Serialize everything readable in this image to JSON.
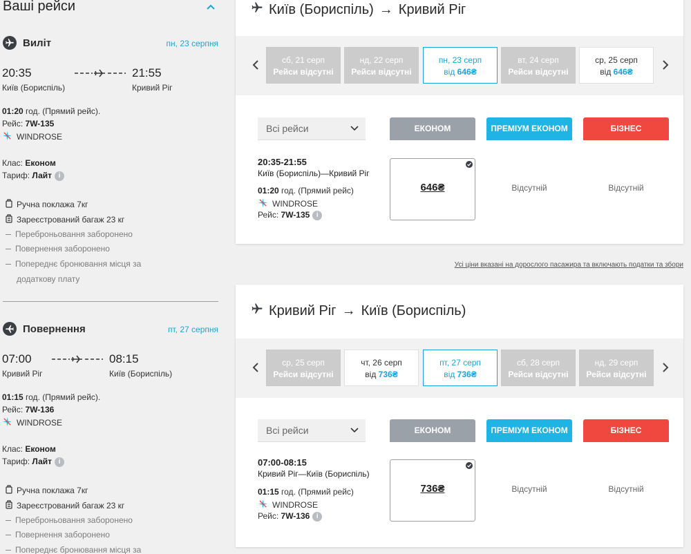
{
  "sidebar": {
    "title": "Ваші рейси",
    "outbound": {
      "label": "Виліт",
      "date": "пн, 23 серпня",
      "dep_time": "20:35",
      "arr_time": "21:55",
      "dep_city": "Київ (Бориспіль)",
      "arr_city": "Кривий Ріг",
      "duration": "01:20",
      "duration_suffix": " год. (Прямий рейс).",
      "flight_prefix": "Рейс: ",
      "flight_no": "7W-135",
      "airline": "WINDROSE",
      "class_prefix": "Клас: ",
      "class_value": "Економ",
      "tariff_prefix": "Тариф: ",
      "tariff_value": "Лайт",
      "luggage": [
        "Ручна поклажа 7кг",
        "Зареєстрований багаж 23 кг"
      ],
      "restrictions": [
        "Переброньовання заборонено",
        "Повернення заборонено",
        "Попереднє бронювання місця за",
        "додаткову плату"
      ]
    },
    "return": {
      "label": "Повернення",
      "date": "пт, 27 серпня",
      "dep_time": "07:00",
      "arr_time": "08:15",
      "dep_city": "Кривий Ріг",
      "arr_city": "Київ (Бориспіль)",
      "duration": "01:15",
      "duration_suffix": " год. (Прямий рейс).",
      "flight_prefix": "Рейс: ",
      "flight_no": "7W-136",
      "airline": "WINDROSE",
      "class_prefix": "Клас: ",
      "class_value": "Економ",
      "tariff_prefix": "Тариф: ",
      "tariff_value": "Лайт",
      "luggage": [
        "Ручна поклажа 7кг",
        "Зареєстрований багаж 23 кг"
      ],
      "restrictions": [
        "Переброньовання заборонено",
        "Повернення заборонено",
        "Попереднє бронювання місця за"
      ]
    }
  },
  "outbound_panel": {
    "from": "Київ (Бориспіль)",
    "arrow": "→",
    "to": "Кривий Ріг",
    "dates": [
      {
        "day": "сб, 21 серп",
        "status": "Рейси відсутні"
      },
      {
        "day": "нд, 22 серп",
        "status": "Рейси відсутні"
      },
      {
        "day": "пн, 23 серп",
        "prefix": "від ",
        "price": "646₴"
      },
      {
        "day": "вт, 24 серп",
        "status": "Рейси відсутні"
      },
      {
        "day": "ср, 25 серп",
        "prefix": "від ",
        "price": "646₴"
      }
    ],
    "filter": "Всі рейси",
    "classes": {
      "economy": "ЕКОНОМ",
      "premium": "ПРЕМІУМ ЕКОНОМ",
      "business": "БІЗНЕС"
    },
    "flight": {
      "time": "20:35-21:55",
      "route": "Київ (Бориспіль)—Кривий Ріг",
      "duration": "01:20",
      "duration_suffix": " год. (Прямий рейс)",
      "airline": "WINDROSE",
      "flight_prefix": "Рейс: ",
      "flight_no": "7W-135",
      "economy_price": "646₴",
      "premium": "Відсутній",
      "business": "Відсутній"
    }
  },
  "price_note": "Усі ціни вказані на дорослого пасажира та включають податки та збори",
  "return_panel": {
    "from": "Кривий Ріг",
    "arrow": "→",
    "to": "Київ (Бориспіль)",
    "dates": [
      {
        "day": "ср, 25 серп",
        "status": "Рейси відсутні"
      },
      {
        "day": "чт, 26 серп",
        "prefix": "від ",
        "price": "736₴"
      },
      {
        "day": "пт, 27 серп",
        "prefix": "від ",
        "price": "736₴"
      },
      {
        "day": "сб, 28 серп",
        "status": "Рейси відсутні"
      },
      {
        "day": "нд, 29 серп",
        "status": "Рейси відсутні"
      }
    ],
    "filter": "Всі рейси",
    "classes": {
      "economy": "ЕКОНОМ",
      "premium": "ПРЕМІУМ ЕКОНОМ",
      "business": "БІЗНЕС"
    },
    "flight": {
      "time": "07:00-08:15",
      "route": "Кривий Ріг—Київ (Бориспіль)",
      "duration": "01:15",
      "duration_suffix": " год. (Прямий рейс)",
      "airline": "WINDROSE",
      "flight_prefix": "Рейс: ",
      "flight_no": "7W-136",
      "economy_price": "736₴",
      "premium": "Відсутній",
      "business": "Відсутній"
    }
  },
  "colors": {
    "accent": "#18a6d8",
    "economy": "#9aa1a9",
    "premium": "#1fb4e4",
    "business": "#f0483e",
    "unavailable_date": "#cccccc"
  },
  "icons": [
    "plane-icon",
    "chevron-up-icon",
    "chevron-left-icon",
    "chevron-right-icon",
    "chevron-down-icon",
    "windrose-logo-icon",
    "info-icon",
    "bag-icon",
    "luggage-icon",
    "check-icon"
  ]
}
